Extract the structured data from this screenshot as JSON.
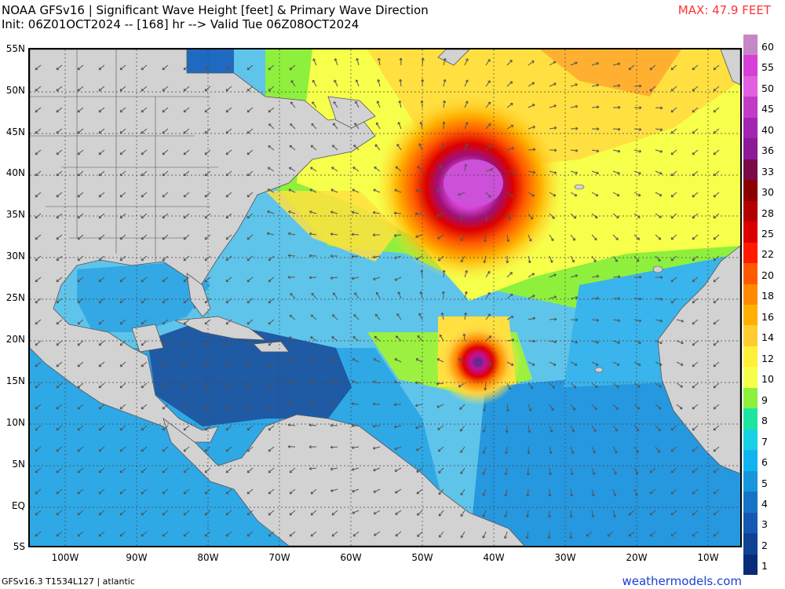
{
  "title_line1": "NOAA GFSv16 | Significant Wave Height [feet] & Primary Wave Direction",
  "title_line2": "Init: 06Z01OCT2024 -- [168] hr --> Valid Tue 06Z08OCT2024",
  "max_label": "MAX: 47.9 FEET",
  "footer_left": "GFSv16.3 T1534L127 | atlantic",
  "footer_right": "weathermodels.com",
  "lat_labels": [
    "55N",
    "50N",
    "45N",
    "40N",
    "35N",
    "30N",
    "25N",
    "20N",
    "15N",
    "10N",
    "5N",
    "EQ",
    "5S"
  ],
  "lon_labels": [
    "100W",
    "90W",
    "80W",
    "70W",
    "60W",
    "50W",
    "40W",
    "30W",
    "20W",
    "10W"
  ],
  "colorbar": {
    "labels": [
      "60",
      "55",
      "50",
      "45",
      "40",
      "36",
      "33",
      "30",
      "28",
      "25",
      "22",
      "20",
      "18",
      "16",
      "14",
      "12",
      "10",
      "9",
      "8",
      "7",
      "6",
      "5",
      "4",
      "3",
      "2",
      "1"
    ],
    "colors": [
      "#c786c6",
      "#d83fd8",
      "#e25fe0",
      "#c23ac6",
      "#a224b0",
      "#8c1a96",
      "#7a0a4a",
      "#8c0000",
      "#b40000",
      "#dc0000",
      "#ff1a00",
      "#ff5a00",
      "#ff8a00",
      "#ffb000",
      "#ffcd30",
      "#fff03a",
      "#f6ff4a",
      "#8cf03c",
      "#1ee6a0",
      "#17d2e6",
      "#12b4f0",
      "#1696dc",
      "#1674c8",
      "#1458b4",
      "#104294",
      "#0a2c78"
    ]
  },
  "map_colors": {
    "land": "#d2d2d2",
    "ocean_base": "#7fd4ef",
    "caribbean": "#1f5aa5",
    "storm_core": "#c24ad0"
  }
}
